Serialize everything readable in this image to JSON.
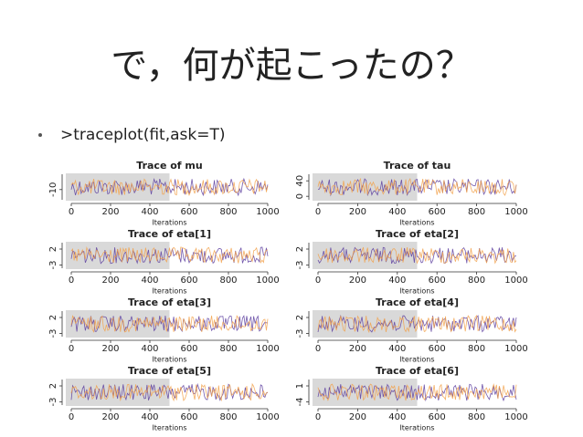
{
  "slide": {
    "title": "で，何が起こったの？",
    "bullet": ">traceplot(fit,ask=T)"
  },
  "chart_data": [
    {
      "type": "trace",
      "title": "Trace of  mu",
      "xlabel": "Iterations",
      "xlim": [
        0,
        1000
      ],
      "xticks": [
        0,
        200,
        400,
        600,
        800,
        1000
      ],
      "ylim": [
        -22,
        8
      ],
      "yticks": [
        -10
      ],
      "warmup": [
        0,
        500
      ],
      "trace_colors": [
        "#5b3c9e",
        "#f2a14a"
      ]
    },
    {
      "type": "trace",
      "title": "Trace of  tau",
      "xlabel": "Iterations",
      "xlim": [
        0,
        1000
      ],
      "xticks": [
        0,
        200,
        400,
        600,
        800,
        1000
      ],
      "ylim": [
        -9,
        57
      ],
      "yticks": [
        0,
        40
      ],
      "warmup": [
        0,
        500
      ],
      "trace_colors": [
        "#5b3c9e",
        "#f2a14a"
      ]
    },
    {
      "type": "trace",
      "title": "Trace of  eta[1]",
      "xlabel": "Iterations",
      "xlim": [
        0,
        1000
      ],
      "xticks": [
        0,
        200,
        400,
        600,
        800,
        1000
      ],
      "ylim": [
        -4,
        4
      ],
      "yticks": [
        -3,
        2
      ],
      "warmup": [
        0,
        500
      ],
      "trace_colors": [
        "#5b3c9e",
        "#f2a14a"
      ]
    },
    {
      "type": "trace",
      "title": "Trace of  eta[2]",
      "xlabel": "Iterations",
      "xlim": [
        0,
        1000
      ],
      "xticks": [
        0,
        200,
        400,
        600,
        800,
        1000
      ],
      "ylim": [
        -4,
        4
      ],
      "yticks": [
        -3,
        2
      ],
      "warmup": [
        0,
        500
      ],
      "trace_colors": [
        "#5b3c9e",
        "#f2a14a"
      ]
    },
    {
      "type": "trace",
      "title": "Trace of  eta[3]",
      "xlabel": "Iterations",
      "xlim": [
        0,
        1000
      ],
      "xticks": [
        0,
        200,
        400,
        600,
        800,
        1000
      ],
      "ylim": [
        -4,
        4
      ],
      "yticks": [
        -3,
        2
      ],
      "warmup": [
        0,
        500
      ],
      "trace_colors": [
        "#5b3c9e",
        "#f2a14a"
      ]
    },
    {
      "type": "trace",
      "title": "Trace of  eta[4]",
      "xlabel": "Iterations",
      "xlim": [
        0,
        1000
      ],
      "xticks": [
        0,
        200,
        400,
        600,
        800,
        1000
      ],
      "ylim": [
        -4,
        4
      ],
      "yticks": [
        -3,
        2
      ],
      "warmup": [
        0,
        500
      ],
      "trace_colors": [
        "#5b3c9e",
        "#f2a14a"
      ]
    },
    {
      "type": "trace",
      "title": "Trace of  eta[5]",
      "xlabel": "Iterations",
      "xlim": [
        0,
        1000
      ],
      "xticks": [
        0,
        200,
        400,
        600,
        800,
        1000
      ],
      "ylim": [
        -4,
        4
      ],
      "yticks": [
        -3,
        2
      ],
      "warmup": [
        0,
        500
      ],
      "trace_colors": [
        "#5b3c9e",
        "#f2a14a"
      ]
    },
    {
      "type": "trace",
      "title": "Trace of  eta[6]",
      "xlabel": "Iterations",
      "xlim": [
        0,
        1000
      ],
      "xticks": [
        0,
        200,
        400,
        600,
        800,
        1000
      ],
      "ylim": [
        -5,
        3
      ],
      "yticks": [
        -4,
        1
      ],
      "warmup": [
        0,
        500
      ],
      "trace_colors": [
        "#5b3c9e",
        "#f2a14a"
      ]
    }
  ]
}
